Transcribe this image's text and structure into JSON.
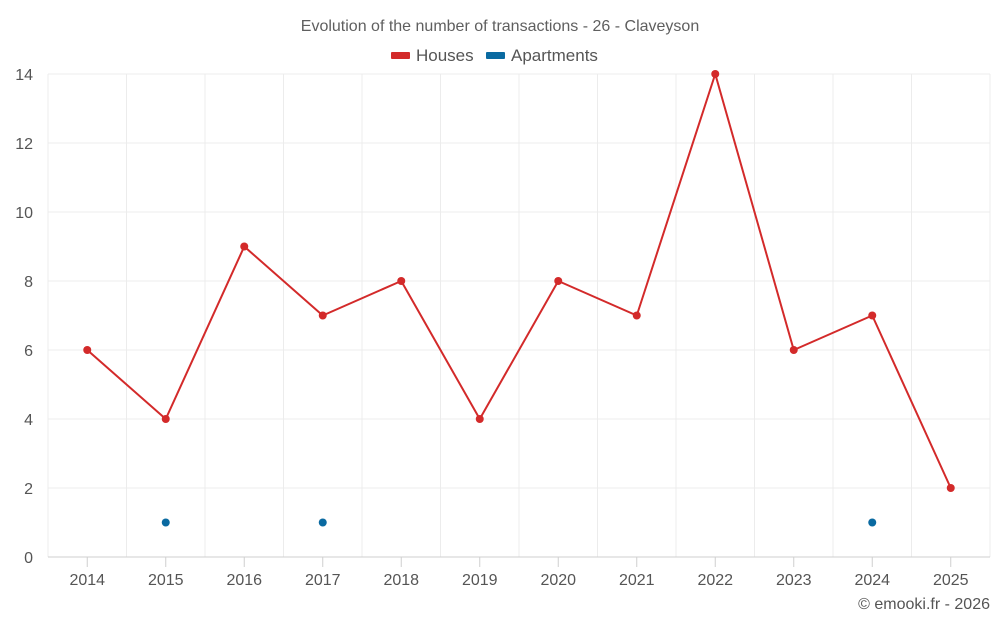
{
  "chart_data": {
    "type": "line",
    "title": "Evolution of the number of transactions - 26 - Claveyson",
    "categories": [
      "2014",
      "2015",
      "2016",
      "2017",
      "2018",
      "2019",
      "2020",
      "2021",
      "2022",
      "2023",
      "2024",
      "2025"
    ],
    "series": [
      {
        "name": "Houses",
        "color": "#d32a2a",
        "values": [
          6,
          4,
          9,
          7,
          8,
          4,
          8,
          7,
          14,
          6,
          7,
          2
        ]
      },
      {
        "name": "Apartments",
        "color": "#0a6aa1",
        "values": [
          null,
          1,
          null,
          1,
          null,
          null,
          null,
          null,
          null,
          null,
          1,
          null
        ]
      }
    ],
    "ylim": [
      0,
      14
    ],
    "yticks": [
      0,
      2,
      4,
      6,
      8,
      10,
      12,
      14
    ],
    "xlabel": "",
    "ylabel": "",
    "legend_position": "top-center",
    "grid": true
  },
  "credit": "© emooki.fr - 2026"
}
